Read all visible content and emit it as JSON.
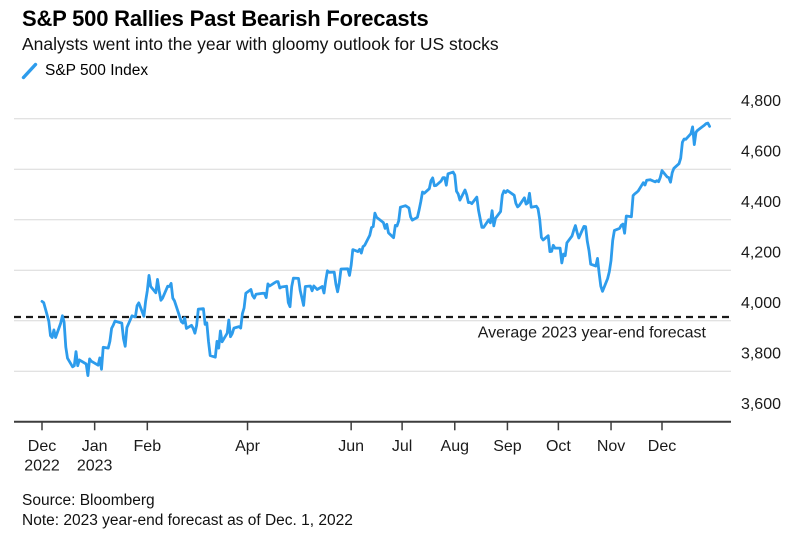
{
  "header": {
    "title": "S&P 500 Rallies Past Bearish Forecasts",
    "subtitle": "Analysts went into the year with gloomy outlook for US stocks"
  },
  "legend": {
    "series_label": "S&P 500 Index",
    "series_color": "#2D9CEC"
  },
  "footer": {
    "source": "Source: Bloomberg",
    "note": "Note: 2023 year-end forecast as of Dec. 1, 2022"
  },
  "chart_data": {
    "type": "line",
    "title": "S&P 500 Rallies Past Bearish Forecasts",
    "subtitle": "Analysts went into the year with gloomy outlook for US stocks",
    "grid": true,
    "legend_position": "top-left",
    "y_axis": {
      "side": "right",
      "range": [
        3600,
        4800
      ],
      "ticks": [
        {
          "value": 4800,
          "label": "4,800"
        },
        {
          "value": 4600,
          "label": "4,600"
        },
        {
          "value": 4400,
          "label": "4,400"
        },
        {
          "value": 4200,
          "label": "4,200"
        },
        {
          "value": 4000,
          "label": "4,000"
        },
        {
          "value": 3800,
          "label": "3,800"
        },
        {
          "value": 3600,
          "label": "3,600"
        }
      ]
    },
    "x_axis": {
      "unit": "days since 2022-12-01",
      "ticks": [
        {
          "day": 0,
          "label": "Dec",
          "sublabel": "2022"
        },
        {
          "day": 31,
          "label": "Jan",
          "sublabel": "2023"
        },
        {
          "day": 62,
          "label": "Feb"
        },
        {
          "day": 121,
          "label": "Apr"
        },
        {
          "day": 182,
          "label": "Jun"
        },
        {
          "day": 212,
          "label": "Jul"
        },
        {
          "day": 243,
          "label": "Aug"
        },
        {
          "day": 274,
          "label": "Sep"
        },
        {
          "day": 304,
          "label": "Oct"
        },
        {
          "day": 335,
          "label": "Nov"
        },
        {
          "day": 365,
          "label": "Dec"
        }
      ]
    },
    "forecast_line": {
      "label": "Average 2023 year-end forecast",
      "value": 4015,
      "style": "dashed",
      "color": "#1a1a1a"
    },
    "series": [
      {
        "name": "S&P 500 Index",
        "color": "#2D9CEC",
        "start_date": "2022-12-01",
        "x_unit": "days since 2022-12-01",
        "points": [
          [
            0,
            4077
          ],
          [
            1,
            4072
          ],
          [
            4,
            3999
          ],
          [
            5,
            3941
          ],
          [
            6,
            3934
          ],
          [
            7,
            3964
          ],
          [
            8,
            3934
          ],
          [
            11,
            3991
          ],
          [
            12,
            4020
          ],
          [
            13,
            3995
          ],
          [
            14,
            3896
          ],
          [
            15,
            3852
          ],
          [
            18,
            3818
          ],
          [
            19,
            3822
          ],
          [
            20,
            3878
          ],
          [
            21,
            3822
          ],
          [
            22,
            3845
          ],
          [
            26,
            3829
          ],
          [
            27,
            3783
          ],
          [
            28,
            3849
          ],
          [
            29,
            3840
          ],
          [
            33,
            3824
          ],
          [
            34,
            3853
          ],
          [
            35,
            3808
          ],
          [
            36,
            3895
          ],
          [
            39,
            3892
          ],
          [
            40,
            3919
          ],
          [
            41,
            3970
          ],
          [
            42,
            3983
          ],
          [
            43,
            3999
          ],
          [
            47,
            3991
          ],
          [
            48,
            3929
          ],
          [
            49,
            3899
          ],
          [
            50,
            3973
          ],
          [
            53,
            4020
          ],
          [
            54,
            4017
          ],
          [
            55,
            4016
          ],
          [
            56,
            4060
          ],
          [
            57,
            4071
          ],
          [
            60,
            4018
          ],
          [
            61,
            4077
          ],
          [
            62,
            4119
          ],
          [
            63,
            4180
          ],
          [
            64,
            4136
          ],
          [
            67,
            4111
          ],
          [
            68,
            4164
          ],
          [
            69,
            4118
          ],
          [
            70,
            4081
          ],
          [
            71,
            4090
          ],
          [
            74,
            4137
          ],
          [
            75,
            4136
          ],
          [
            76,
            4148
          ],
          [
            77,
            4090
          ],
          [
            78,
            4079
          ],
          [
            82,
            3997
          ],
          [
            83,
            3991
          ],
          [
            84,
            4012
          ],
          [
            85,
            3970
          ],
          [
            88,
            3982
          ],
          [
            89,
            3970
          ],
          [
            90,
            3951
          ],
          [
            91,
            3981
          ],
          [
            92,
            4046
          ],
          [
            95,
            4048
          ],
          [
            96,
            3986
          ],
          [
            97,
            3992
          ],
          [
            98,
            3918
          ],
          [
            99,
            3862
          ],
          [
            102,
            3856
          ],
          [
            103,
            3919
          ],
          [
            104,
            3892
          ],
          [
            105,
            3960
          ],
          [
            106,
            3917
          ],
          [
            109,
            3951
          ],
          [
            110,
            4003
          ],
          [
            111,
            3937
          ],
          [
            112,
            3949
          ],
          [
            113,
            3971
          ],
          [
            116,
            3977
          ],
          [
            117,
            3971
          ],
          [
            118,
            4028
          ],
          [
            119,
            4051
          ],
          [
            120,
            4109
          ],
          [
            123,
            4124
          ],
          [
            124,
            4100
          ],
          [
            125,
            4090
          ],
          [
            126,
            4105
          ],
          [
            130,
            4109
          ],
          [
            131,
            4109
          ],
          [
            132,
            4092
          ],
          [
            133,
            4146
          ],
          [
            134,
            4138
          ],
          [
            137,
            4151
          ],
          [
            138,
            4155
          ],
          [
            139,
            4155
          ],
          [
            140,
            4130
          ],
          [
            141,
            4134
          ],
          [
            144,
            4137
          ],
          [
            145,
            4072
          ],
          [
            146,
            4056
          ],
          [
            147,
            4135
          ],
          [
            148,
            4169
          ],
          [
            151,
            4168
          ],
          [
            152,
            4120
          ],
          [
            153,
            4091
          ],
          [
            154,
            4061
          ],
          [
            155,
            4136
          ],
          [
            158,
            4138
          ],
          [
            159,
            4119
          ],
          [
            160,
            4138
          ],
          [
            161,
            4131
          ],
          [
            162,
            4124
          ],
          [
            165,
            4136
          ],
          [
            166,
            4110
          ],
          [
            167,
            4159
          ],
          [
            168,
            4198
          ],
          [
            169,
            4192
          ],
          [
            172,
            4193
          ],
          [
            173,
            4145
          ],
          [
            174,
            4115
          ],
          [
            175,
            4151
          ],
          [
            176,
            4205
          ],
          [
            180,
            4206
          ],
          [
            181,
            4180
          ],
          [
            182,
            4221
          ],
          [
            183,
            4282
          ],
          [
            186,
            4274
          ],
          [
            187,
            4283
          ],
          [
            188,
            4268
          ],
          [
            189,
            4294
          ],
          [
            190,
            4299
          ],
          [
            193,
            4339
          ],
          [
            194,
            4369
          ],
          [
            195,
            4373
          ],
          [
            196,
            4426
          ],
          [
            197,
            4410
          ],
          [
            201,
            4389
          ],
          [
            202,
            4366
          ],
          [
            203,
            4382
          ],
          [
            204,
            4348
          ],
          [
            207,
            4329
          ],
          [
            208,
            4378
          ],
          [
            209,
            4376
          ],
          [
            210,
            4396
          ],
          [
            211,
            4450
          ],
          [
            214,
            4456
          ],
          [
            216,
            4447
          ],
          [
            217,
            4412
          ],
          [
            218,
            4399
          ],
          [
            221,
            4410
          ],
          [
            222,
            4439
          ],
          [
            223,
            4472
          ],
          [
            224,
            4510
          ],
          [
            225,
            4505
          ],
          [
            228,
            4523
          ],
          [
            229,
            4555
          ],
          [
            230,
            4566
          ],
          [
            231,
            4535
          ],
          [
            232,
            4536
          ],
          [
            235,
            4554
          ],
          [
            236,
            4567
          ],
          [
            237,
            4567
          ],
          [
            238,
            4537
          ],
          [
            239,
            4582
          ],
          [
            242,
            4589
          ],
          [
            243,
            4577
          ],
          [
            244,
            4513
          ],
          [
            245,
            4502
          ],
          [
            246,
            4478
          ],
          [
            249,
            4518
          ],
          [
            250,
            4499
          ],
          [
            251,
            4468
          ],
          [
            252,
            4469
          ],
          [
            253,
            4464
          ],
          [
            256,
            4490
          ],
          [
            257,
            4438
          ],
          [
            258,
            4404
          ],
          [
            259,
            4370
          ],
          [
            260,
            4370
          ],
          [
            263,
            4400
          ],
          [
            264,
            4388
          ],
          [
            265,
            4436
          ],
          [
            266,
            4376
          ],
          [
            267,
            4406
          ],
          [
            270,
            4433
          ],
          [
            271,
            4498
          ],
          [
            272,
            4515
          ],
          [
            273,
            4508
          ],
          [
            274,
            4516
          ],
          [
            278,
            4497
          ],
          [
            279,
            4465
          ],
          [
            280,
            4451
          ],
          [
            281,
            4457
          ],
          [
            284,
            4487
          ],
          [
            285,
            4462
          ],
          [
            286,
            4467
          ],
          [
            287,
            4505
          ],
          [
            288,
            4450
          ],
          [
            291,
            4454
          ],
          [
            292,
            4444
          ],
          [
            293,
            4402
          ],
          [
            294,
            4330
          ],
          [
            295,
            4320
          ],
          [
            298,
            4337
          ],
          [
            299,
            4274
          ],
          [
            300,
            4275
          ],
          [
            301,
            4299
          ],
          [
            302,
            4288
          ],
          [
            305,
            4288
          ],
          [
            306,
            4229
          ],
          [
            307,
            4264
          ],
          [
            308,
            4258
          ],
          [
            309,
            4309
          ],
          [
            312,
            4336
          ],
          [
            313,
            4358
          ],
          [
            314,
            4377
          ],
          [
            315,
            4350
          ],
          [
            316,
            4328
          ],
          [
            319,
            4374
          ],
          [
            320,
            4373
          ],
          [
            321,
            4315
          ],
          [
            322,
            4278
          ],
          [
            323,
            4224
          ],
          [
            326,
            4217
          ],
          [
            327,
            4247
          ],
          [
            328,
            4187
          ],
          [
            329,
            4137
          ],
          [
            330,
            4117
          ],
          [
            333,
            4167
          ],
          [
            334,
            4194
          ],
          [
            335,
            4238
          ],
          [
            336,
            4318
          ],
          [
            337,
            4358
          ],
          [
            340,
            4366
          ],
          [
            341,
            4378
          ],
          [
            342,
            4383
          ],
          [
            343,
            4347
          ],
          [
            344,
            4415
          ],
          [
            347,
            4412
          ],
          [
            348,
            4496
          ],
          [
            349,
            4503
          ],
          [
            350,
            4508
          ],
          [
            351,
            4514
          ],
          [
            354,
            4547
          ],
          [
            355,
            4538
          ],
          [
            356,
            4557
          ],
          [
            358,
            4559
          ],
          [
            361,
            4550
          ],
          [
            362,
            4555
          ],
          [
            363,
            4551
          ],
          [
            364,
            4568
          ],
          [
            365,
            4595
          ],
          [
            368,
            4570
          ],
          [
            369,
            4567
          ],
          [
            370,
            4549
          ],
          [
            371,
            4586
          ],
          [
            372,
            4604
          ],
          [
            375,
            4622
          ],
          [
            376,
            4644
          ],
          [
            377,
            4707
          ],
          [
            378,
            4720
          ],
          [
            379,
            4719
          ],
          [
            382,
            4741
          ],
          [
            383,
            4768
          ],
          [
            384,
            4698
          ],
          [
            385,
            4747
          ],
          [
            386,
            4755
          ],
          [
            390,
            4775
          ],
          [
            391,
            4781
          ],
          [
            392,
            4783
          ],
          [
            393,
            4770
          ]
        ]
      }
    ]
  }
}
